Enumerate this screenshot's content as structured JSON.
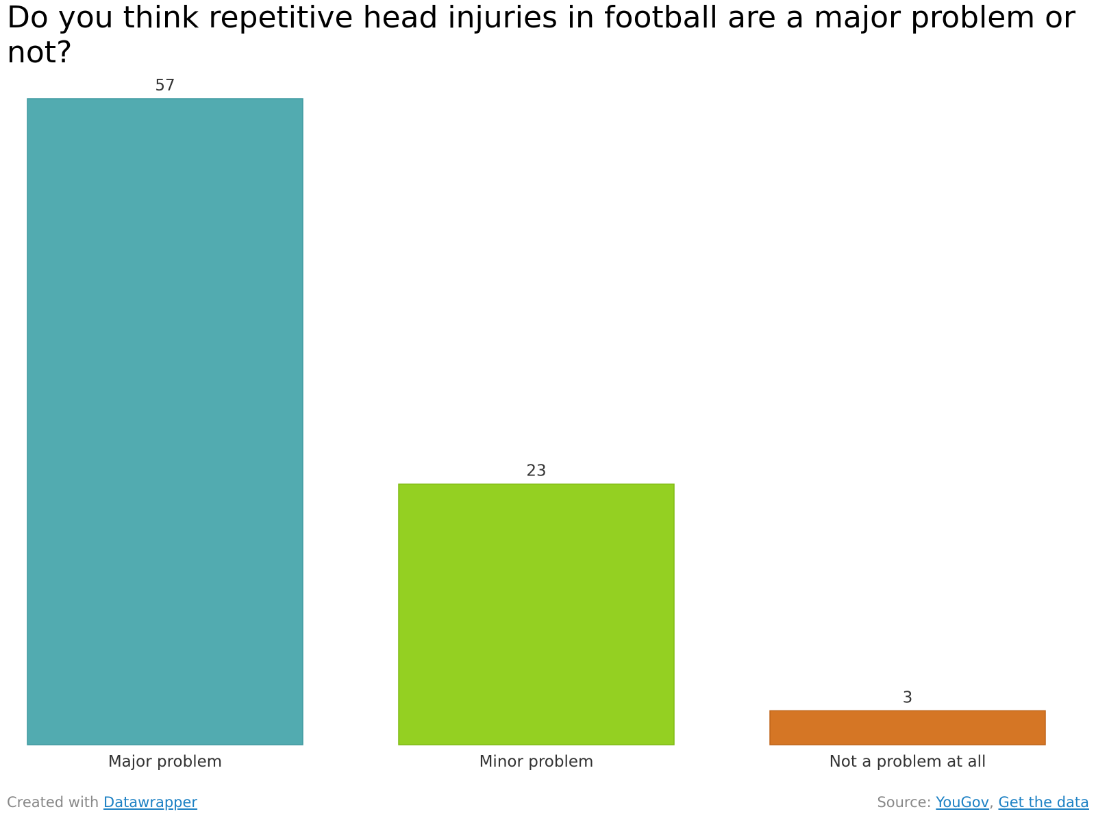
{
  "chart_data": {
    "type": "bar",
    "title": "Do you think repetitive head injuries in football are a major problem or not?",
    "categories": [
      "Major problem",
      "Minor problem",
      "Not a problem at all"
    ],
    "values": [
      57,
      23,
      3
    ],
    "colors": [
      "#52abb0",
      "#94d022",
      "#d57625"
    ],
    "border_colors": [
      "#3f9aa0",
      "#7fba12",
      "#bf6418"
    ],
    "ylim": [
      0,
      57
    ],
    "grid": false,
    "xlabel": "",
    "ylabel": ""
  },
  "footer": {
    "created_with_prefix": "Created with",
    "created_with_link": "Datawrapper",
    "source_prefix": "Source:",
    "source_link": "YouGov",
    "source_separator": ",",
    "get_data_link": "Get the data"
  }
}
